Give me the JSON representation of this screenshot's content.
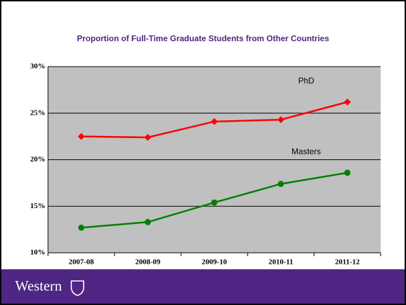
{
  "footer": {
    "text": "Western"
  },
  "chart_data": {
    "type": "line",
    "title": "Proportion of Full-Time Graduate Students from Other Countries",
    "categories": [
      "2007-08",
      "2008-09",
      "2009-10",
      "2010-11",
      "2011-12"
    ],
    "series": [
      {
        "name": "PhD",
        "color": "#ff0000",
        "marker": "diamond",
        "values": [
          22.5,
          22.4,
          24.1,
          24.3,
          26.2
        ]
      },
      {
        "name": "Masters",
        "color": "#008000",
        "marker": "circle",
        "values": [
          12.7,
          13.3,
          15.4,
          17.4,
          18.6
        ]
      }
    ],
    "ylim": [
      10,
      30
    ],
    "yticks": [
      {
        "value": 10,
        "label": "10%"
      },
      {
        "value": 15,
        "label": "15%"
      },
      {
        "value": 20,
        "label": "20%"
      },
      {
        "value": 25,
        "label": "25%"
      },
      {
        "value": 30,
        "label": "30%"
      }
    ],
    "grid": true
  }
}
